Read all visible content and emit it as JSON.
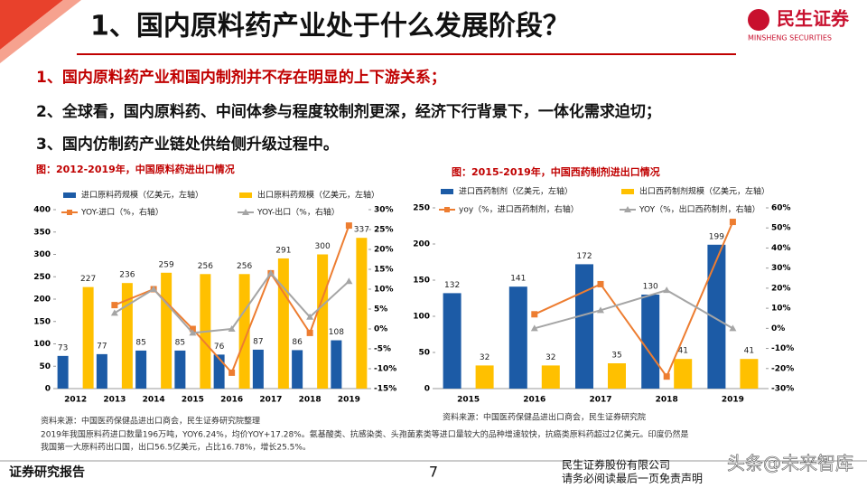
{
  "header": {
    "title": "1、国内原料药产业处于什么发展阶段？",
    "logo_name": "民生证券",
    "logo_en": "MINSHENG SECURITIES"
  },
  "bullets": [
    "1、国内原料药产业和国内制剂并不存在明显的上下游关系；",
    "2、全球看，国内原料药、中间体参与程度较制剂更深，经济下行背景下，一体化需求迫切；",
    "3、国内仿制药产业链处供给侧升级过程中。"
  ],
  "chart_data": [
    {
      "type": "bar",
      "title": "图：2012-2019年，中国原料药进出口情况",
      "categories": [
        "2012",
        "2013",
        "2014",
        "2015",
        "2016",
        "2017",
        "2018",
        "2019"
      ],
      "ylim": [
        0,
        400
      ],
      "yticks": [
        0,
        50,
        100,
        150,
        200,
        250,
        300,
        350,
        400
      ],
      "y2lim": [
        -15,
        30
      ],
      "y2ticks": [
        {
          "value": -15,
          "label": "-15%"
        },
        {
          "value": -10,
          "label": "-10%"
        },
        {
          "value": -5,
          "label": "-5%"
        },
        {
          "value": 0,
          "label": "0%"
        },
        {
          "value": 5,
          "label": "5%"
        },
        {
          "value": 10,
          "label": "10%"
        },
        {
          "value": 15,
          "label": "15%"
        },
        {
          "value": 20,
          "label": "20%"
        },
        {
          "value": 25,
          "label": "25%"
        },
        {
          "value": 30,
          "label": "30%"
        }
      ],
      "series": [
        {
          "name": "进口原料药规模（亿美元，左轴）",
          "type": "bar",
          "color": "#1c5ba6",
          "values": [
            73,
            77,
            85,
            85,
            76,
            87,
            86,
            108
          ]
        },
        {
          "name": "出口原料药规模（亿美元，左轴）",
          "type": "bar",
          "color": "#ffc000",
          "values": [
            227,
            236,
            259,
            256,
            256,
            291,
            300,
            337
          ]
        },
        {
          "name": "YOY-进口（%，右轴）",
          "type": "line",
          "marker": "square",
          "axis": "y2",
          "color": "#ed7d31",
          "values": [
            null,
            6,
            10,
            0,
            -11,
            14,
            -1,
            26
          ]
        },
        {
          "name": "YOY-出口（%，右轴）",
          "type": "line",
          "marker": "triangle",
          "axis": "y2",
          "color": "#a5a5a5",
          "values": [
            null,
            4,
            10,
            -1,
            0,
            14,
            3,
            12
          ]
        }
      ],
      "source": "资料来源：中国医药保健品进出口商会，民生证券研究院整理",
      "notes": [
        "2019年我国原料药进口数量196万吨，YOY6.24%，均价YOY+17.28%。氨基酸类、抗感染类、头孢菌素类等进口量较大的品种增速较快，抗癌类原料药超过2亿美元。印度仍然是",
        "我国第一大原料药出口国，出口56.5亿美元，占比16.78%，增长25.5%。"
      ]
    },
    {
      "type": "bar",
      "title": "图：2015-2019年，中国西药制剂进出口情况",
      "categories": [
        "2015",
        "2016",
        "2017",
        "2018",
        "2019"
      ],
      "ylim": [
        0,
        250
      ],
      "yticks": [
        0,
        50,
        100,
        150,
        200,
        250
      ],
      "y2lim": [
        -30,
        60
      ],
      "y2ticks": [
        {
          "value": -30,
          "label": "-30%"
        },
        {
          "value": -20,
          "label": "-20%"
        },
        {
          "value": -10,
          "label": "-10%"
        },
        {
          "value": 0,
          "label": "0%"
        },
        {
          "value": 10,
          "label": "10%"
        },
        {
          "value": 20,
          "label": "20%"
        },
        {
          "value": 30,
          "label": "30%"
        },
        {
          "value": 40,
          "label": "40%"
        },
        {
          "value": 50,
          "label": "50%"
        },
        {
          "value": 60,
          "label": "60%"
        }
      ],
      "series": [
        {
          "name": "进口西药制剂（亿美元，左轴）",
          "type": "bar",
          "color": "#1c5ba6",
          "values": [
            132,
            141,
            172,
            130,
            199
          ]
        },
        {
          "name": "出口西药制剂规模（亿美元，左轴）",
          "type": "bar",
          "color": "#ffc000",
          "values": [
            32,
            32,
            35,
            41,
            41
          ]
        },
        {
          "name": "yoy（%，进口西药制剂，右轴）",
          "type": "line",
          "marker": "square",
          "axis": "y2",
          "color": "#ed7d31",
          "values": [
            null,
            7,
            22,
            -24,
            53
          ]
        },
        {
          "name": "YOY（%，出口西药制剂，右轴）",
          "type": "line",
          "marker": "triangle",
          "axis": "y2",
          "color": "#a5a5a5",
          "values": [
            null,
            0,
            9,
            19,
            0
          ]
        }
      ],
      "source": "资料来源：中国医药保健品进出口商会，民生证券研究院"
    }
  ],
  "footer": {
    "left": "证券研究报告",
    "page": "7",
    "company": "民生证券股份有限公司",
    "disclaimer": "请务必阅读最后一页免责声明"
  },
  "watermark": "头条@未来智库"
}
